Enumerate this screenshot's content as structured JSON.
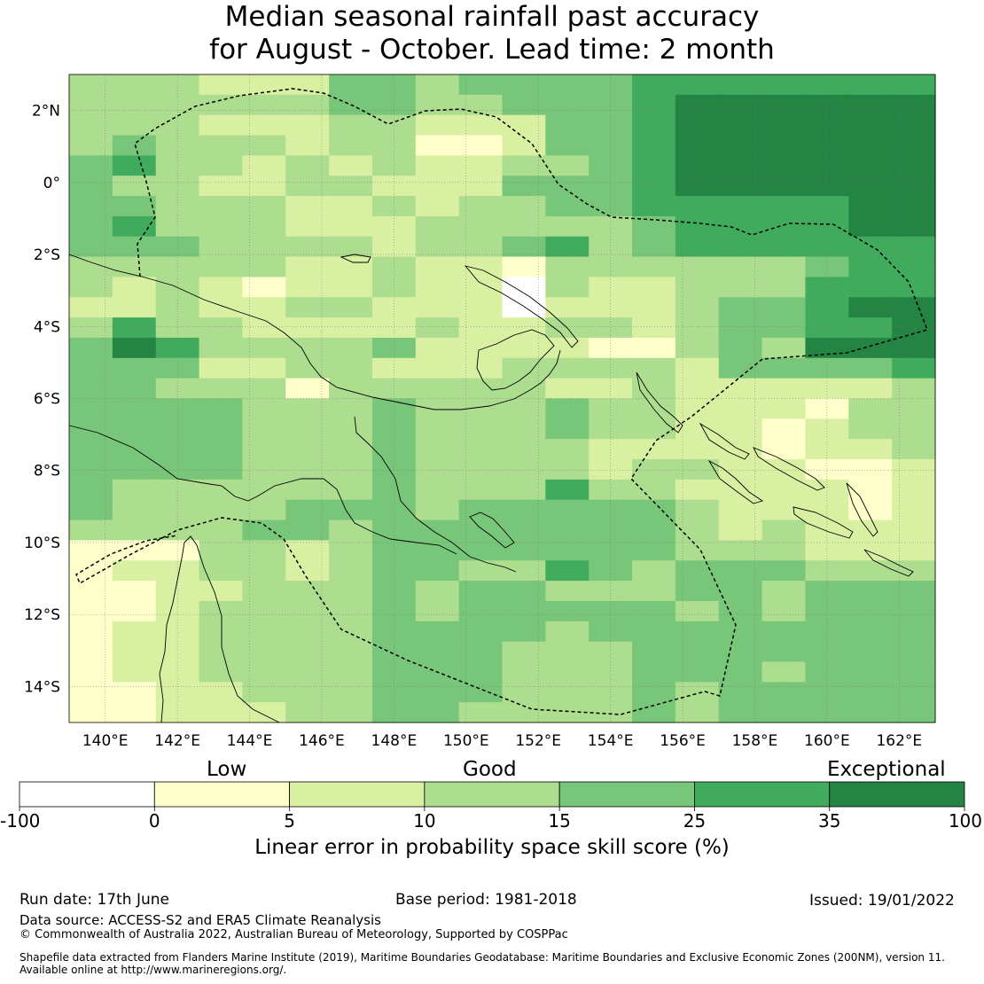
{
  "title": {
    "line1": "Median seasonal rainfall past accuracy",
    "line2": "for August - October. Lead time: 2 month"
  },
  "map": {
    "lon_range": [
      139,
      163
    ],
    "lat_range": [
      -15,
      3
    ],
    "lon_ticks": [
      "140°E",
      "142°E",
      "144°E",
      "146°E",
      "148°E",
      "150°E",
      "152°E",
      "154°E",
      "156°E",
      "158°E",
      "160°E",
      "162°E"
    ],
    "lat_ticks": [
      "2°N",
      "0°",
      "2°S",
      "4°S",
      "6°S",
      "8°S",
      "10°S",
      "12°S",
      "14°S"
    ],
    "grid_rows": [
      "33322244344445555555",
      "33333344334445666666",
      "33322233222445666666",
      "34333233112445666666",
      "45332323223345666666",
      "43322332224445666666",
      "44333223233445555566",
      "45333222333334555566",
      "44433332334534555555",
      "33333223221333333455",
      "32321223220322333555",
      "22322332220222344566",
      "35332222322332344556",
      "46533334222211343666",
      "44422332223333244445",
      "44333133333223222223",
      "44443334333433222133",
      "44443334333433221233",
      "44443334333322221223",
      "44443334333323322112",
      "43333334333533222212",
      "43333444344444322212",
      "33334434444444323222",
      "11133234444444333222",
      "12233234433543444333",
      "11223334344333443444",
      "11233334344444343444",
      "12233334444344444444",
      "12233334443334444444",
      "12233334443334443444",
      "11223334443334344444",
      "11222334433334344444"
    ],
    "legend_title": "Linear error in probability space skill score (%)"
  },
  "colorbar": {
    "category_labels": [
      "Low",
      "Good",
      "Exceptional"
    ],
    "tick_labels": [
      "-100",
      "0",
      "5",
      "10",
      "15",
      "25",
      "35",
      "100"
    ],
    "colors": [
      "#ffffff",
      "#ffffcc",
      "#d9f0a3",
      "#addd8e",
      "#78c679",
      "#41ab5d",
      "#238443"
    ]
  },
  "footer": {
    "run_date": "Run date: 17th June",
    "base_period": "Base period: 1981-2018",
    "issued": "Issued: 19/01/2022",
    "data_source": "Data source: ACCESS-S2 and ERA5 Climate Reanalysis",
    "copyright": "© Commonwealth of Australia 2022, Australian Bureau of Meteorology, Supported by COSPPac",
    "shapefile_line1": "Shapefile data extracted from Flanders Marine Institute (2019), Maritime Boundaries Geodatabase: Maritime Boundaries and Exclusive Economic Zones (200NM), version 11.",
    "shapefile_line2": "Available online at http://www.marineregions.org/."
  }
}
